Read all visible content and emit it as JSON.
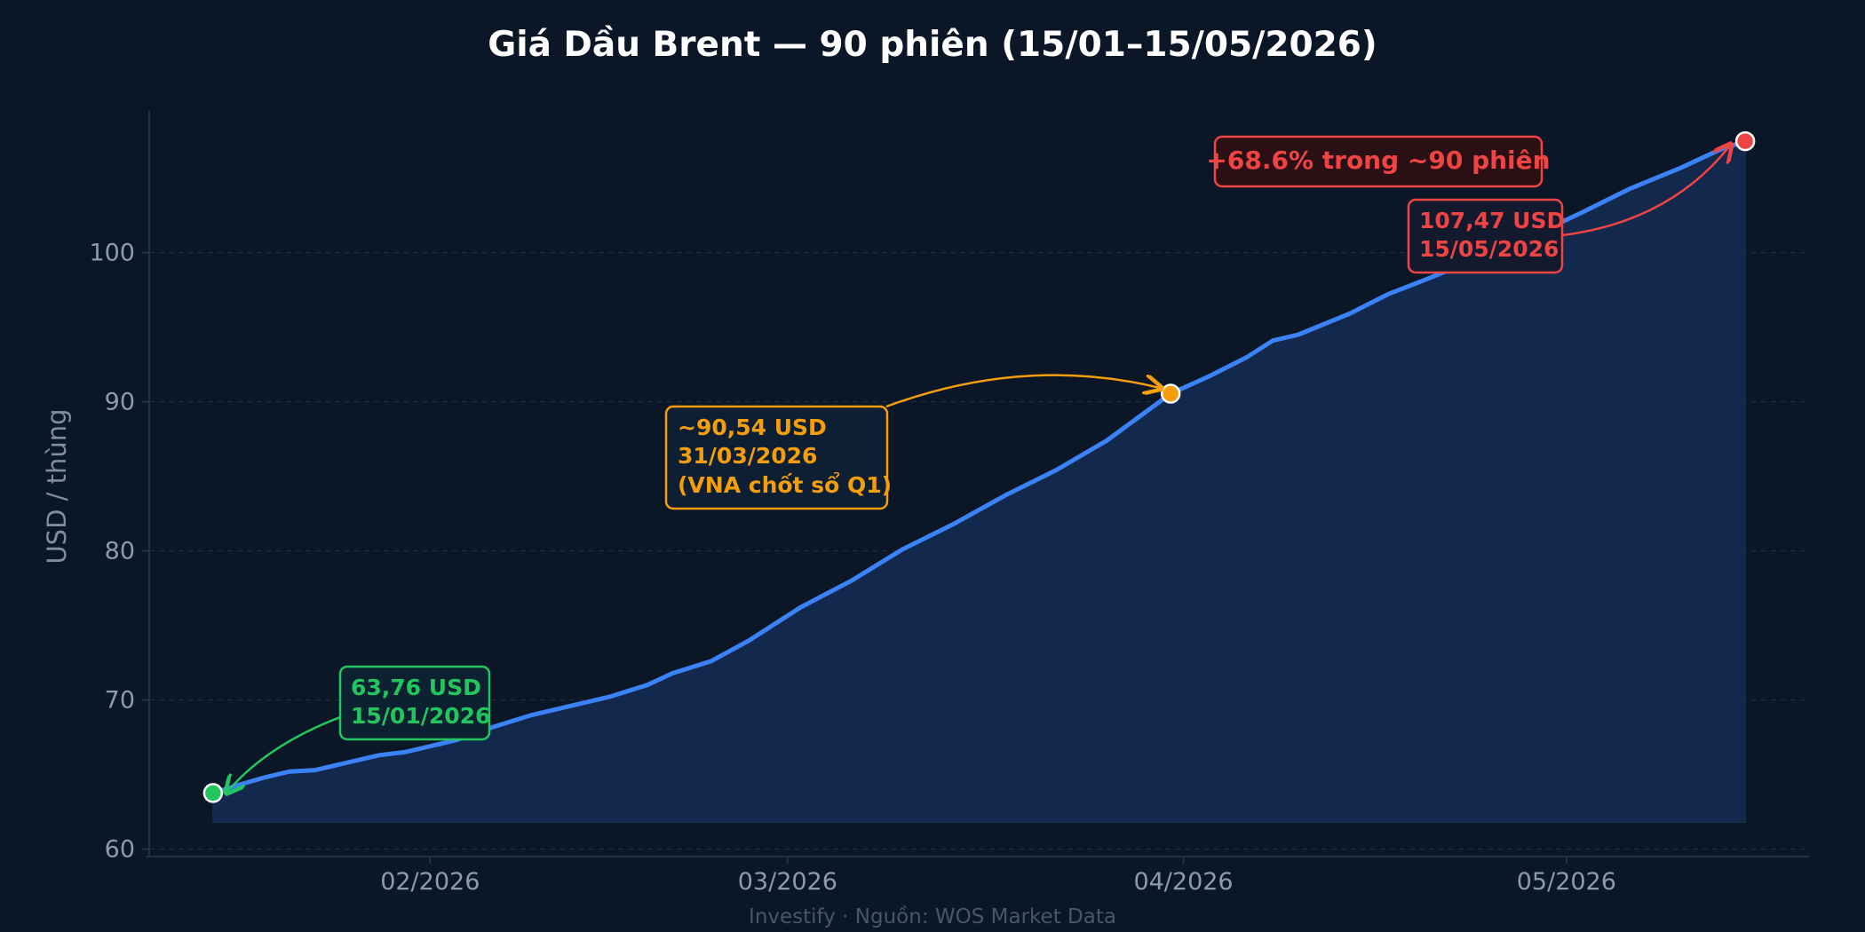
{
  "chart_data": {
    "type": "area",
    "title": "Giá Dầu Brent — 90 phiên (15/01–15/05/2026)",
    "ylabel": "USD / thùng",
    "xlabel": "",
    "footer": "Investify · Nguồn: WOS Market Data",
    "ylim": [
      59.5,
      109.5
    ],
    "yticks": [
      60,
      70,
      80,
      90,
      100
    ],
    "xlim": [
      "2026-01-10",
      "2026-05-20"
    ],
    "xticks": [
      {
        "date": "2026-02-01",
        "label": "02/2026"
      },
      {
        "date": "2026-03-01",
        "label": "03/2026"
      },
      {
        "date": "2026-04-01",
        "label": "04/2026"
      },
      {
        "date": "2026-05-01",
        "label": "05/2026"
      }
    ],
    "grid": true,
    "fill_baseline": 61.8,
    "series": [
      {
        "x": [
          "2026-01-15",
          "2026-01-17",
          "2026-01-19",
          "2026-01-21",
          "2026-01-23",
          "2026-01-26",
          "2026-01-28",
          "2026-01-30",
          "2026-02-03",
          "2026-02-06",
          "2026-02-09",
          "2026-02-12",
          "2026-02-15",
          "2026-02-18",
          "2026-02-20",
          "2026-02-23",
          "2026-02-26",
          "2026-03-02",
          "2026-03-06",
          "2026-03-10",
          "2026-03-14",
          "2026-03-18",
          "2026-03-22",
          "2026-03-26",
          "2026-03-31",
          "2026-04-03",
          "2026-04-06",
          "2026-04-08",
          "2026-04-10",
          "2026-04-14",
          "2026-04-17",
          "2026-04-20",
          "2026-04-24",
          "2026-04-28",
          "2026-05-02",
          "2026-05-06",
          "2026-05-10",
          "2026-05-13",
          "2026-05-15"
        ],
        "y": [
          63.76,
          64.3,
          64.8,
          65.2,
          65.3,
          65.9,
          66.3,
          66.5,
          67.3,
          68.2,
          69.0,
          69.6,
          70.2,
          71.0,
          71.8,
          72.6,
          74.0,
          76.2,
          78.0,
          80.1,
          81.8,
          83.7,
          85.4,
          87.4,
          90.54,
          91.7,
          93.0,
          94.1,
          94.5,
          95.9,
          97.2,
          98.2,
          99.6,
          101.0,
          102.6,
          104.3,
          105.7,
          106.9,
          107.47
        ]
      }
    ],
    "annotations": [
      {
        "x": "2026-01-15",
        "y": 63.76,
        "label": [
          "63,76 USD",
          "15/01/2026"
        ],
        "color": "#22c55e"
      },
      {
        "x": "2026-03-31",
        "y": 90.54,
        "label": [
          "~90,54 USD",
          "31/03/2026",
          "(VNA chốt sổ Q1)"
        ],
        "color": "#f59e0b"
      },
      {
        "x": "2026-05-15",
        "y": 107.47,
        "label": [
          "107,47 USD",
          "15/05/2026"
        ],
        "color": "#ef4444"
      }
    ],
    "change_label": "+68.6% trong ~90 phiên",
    "colors": {
      "line": "#3b82f6",
      "fill": "#13284d",
      "background": "#0b1626",
      "grid": "#1e2d44",
      "start": "#22c55e",
      "mid": "#f59e0b",
      "end": "#ef4444"
    }
  }
}
